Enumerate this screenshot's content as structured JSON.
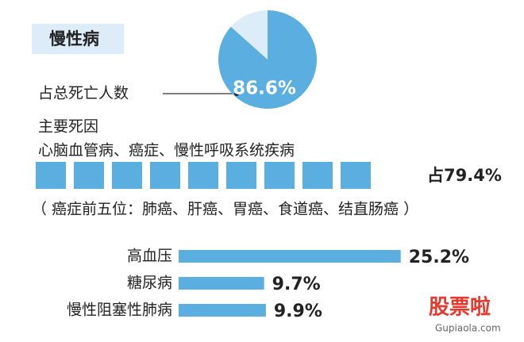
{
  "header": {
    "title": "慢性病"
  },
  "chart_data": [
    {
      "type": "pie",
      "label": "占总死亡人数",
      "values": [
        86.6
      ],
      "value_labels": [
        "86.6%"
      ],
      "color": "#5aaee0",
      "rest_color": "#dcecf8"
    },
    {
      "type": "hbar",
      "categories": [
        "高血压",
        "糖尿病",
        "慢性阻塞性肺病"
      ],
      "values": [
        25.2,
        9.7,
        9.9
      ],
      "value_labels": [
        "25.2%",
        "9.7%",
        "9.9%"
      ],
      "color": "#5aaee0"
    }
  ],
  "main_causes": {
    "heading": "主要死因",
    "diseases": "心脑血管病、癌症、慢性呼吸系统疾病",
    "share": "占79.4%",
    "note": "（ 癌症前五位：肺癌、肝癌、胃癌、食道癌、结直肠癌 ）"
  },
  "watermark": {
    "brand": "股票啦",
    "url": "Gupiaola.com"
  }
}
